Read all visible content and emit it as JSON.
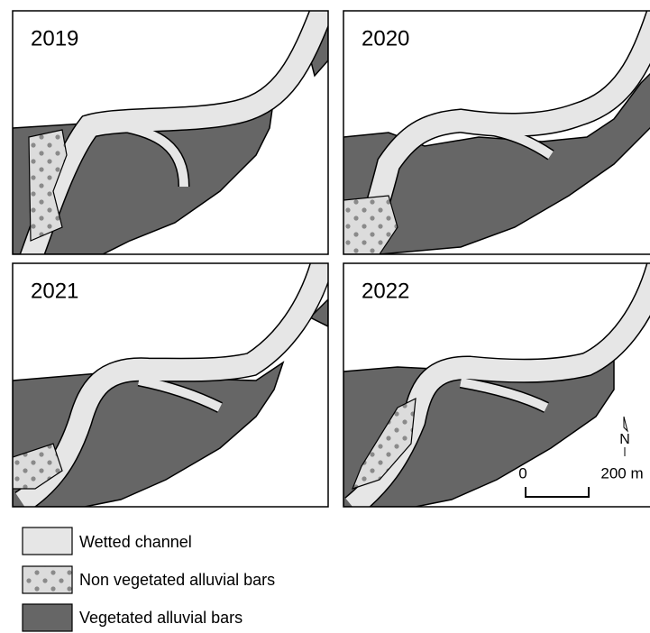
{
  "panels": [
    {
      "label": "2019"
    },
    {
      "label": "2020"
    },
    {
      "label": "2021"
    },
    {
      "label": "2022"
    }
  ],
  "legend": [
    {
      "label": "Wetted channel"
    },
    {
      "label": "Non vegetated alluvial bars"
    },
    {
      "label": "Vegetated alluvial bars"
    }
  ],
  "scale_bar": {
    "start": "0",
    "end": "200 m"
  },
  "north_arrow": "N"
}
